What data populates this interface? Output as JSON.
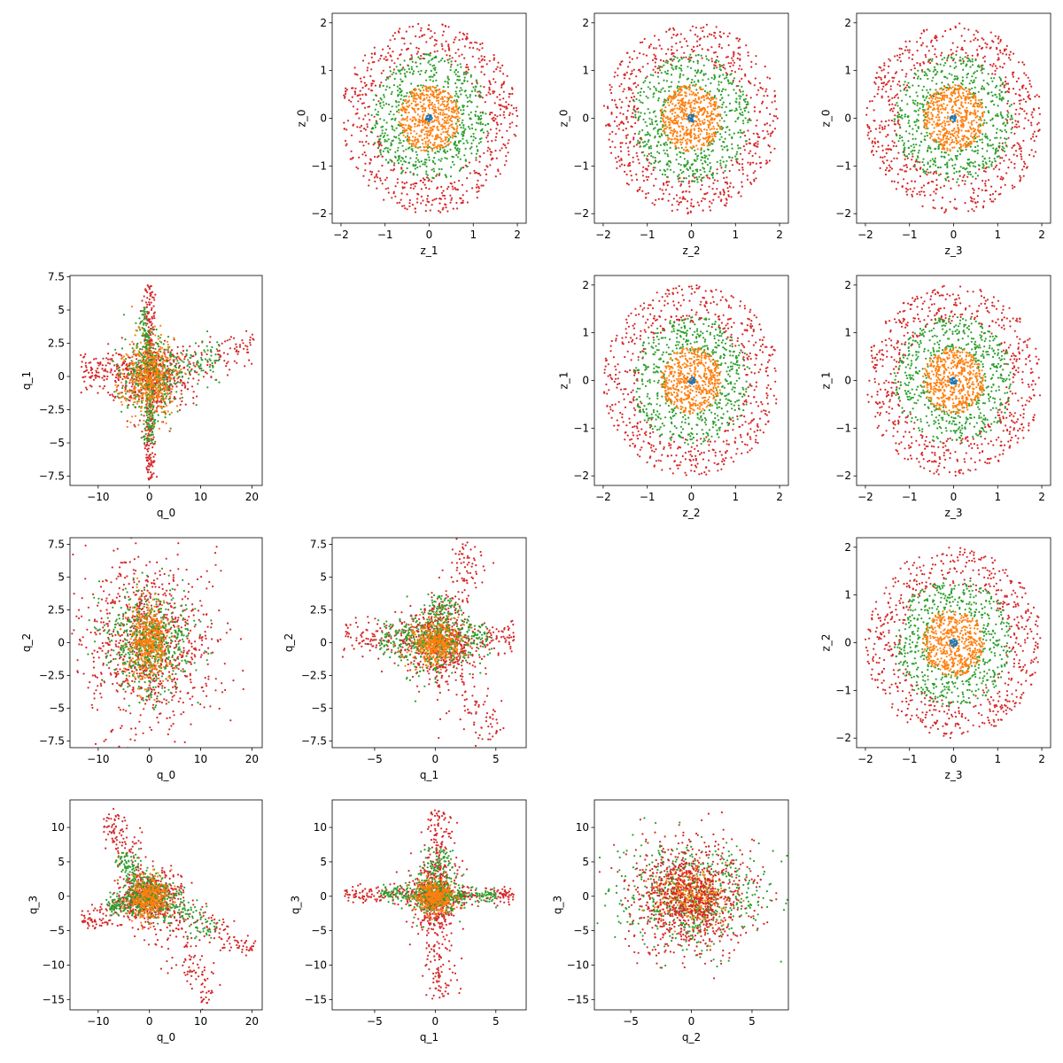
{
  "chart_data": [
    {
      "id": "z0_vs_z1",
      "type": "scatter",
      "xlabel": "z_1",
      "ylabel": "z_0",
      "xlim": [
        -2.2,
        2.2
      ],
      "ylim": [
        -2.2,
        2.2
      ],
      "xticks": [
        -2,
        -1,
        0,
        1,
        2
      ],
      "yticks": [
        -2,
        -1,
        0,
        1,
        2
      ],
      "series": [
        {
          "color": "#d62728",
          "shape": "annulus",
          "inner_radius": 1.2,
          "outer_radius": 2.0,
          "count": 620
        },
        {
          "color": "#2ca02c",
          "shape": "annulus",
          "inner_radius": 0.6,
          "outer_radius": 1.35,
          "count": 560
        },
        {
          "color": "#ff7f0e",
          "shape": "disk",
          "inner_radius": 0.0,
          "outer_radius": 0.7,
          "count": 520
        },
        {
          "color": "#1f77b4",
          "shape": "disk",
          "inner_radius": 0.0,
          "outer_radius": 0.08,
          "count": 25
        }
      ]
    },
    {
      "id": "z0_vs_z2",
      "type": "scatter",
      "xlabel": "z_2",
      "ylabel": "z_0",
      "xlim": [
        -2.2,
        2.2
      ],
      "ylim": [
        -2.2,
        2.2
      ],
      "xticks": [
        -2,
        -1,
        0,
        1,
        2
      ],
      "yticks": [
        -2,
        -1,
        0,
        1,
        2
      ],
      "series": [
        {
          "color": "#d62728",
          "shape": "annulus",
          "inner_radius": 1.2,
          "outer_radius": 2.0,
          "count": 620
        },
        {
          "color": "#2ca02c",
          "shape": "annulus",
          "inner_radius": 0.6,
          "outer_radius": 1.35,
          "count": 560
        },
        {
          "color": "#ff7f0e",
          "shape": "disk",
          "inner_radius": 0.0,
          "outer_radius": 0.7,
          "count": 520
        },
        {
          "color": "#1f77b4",
          "shape": "disk",
          "inner_radius": 0.0,
          "outer_radius": 0.08,
          "count": 25
        }
      ]
    },
    {
      "id": "z0_vs_z3",
      "type": "scatter",
      "xlabel": "z_3",
      "ylabel": "z_0",
      "xlim": [
        -2.2,
        2.2
      ],
      "ylim": [
        -2.2,
        2.2
      ],
      "xticks": [
        -2,
        -1,
        0,
        1,
        2
      ],
      "yticks": [
        -2,
        -1,
        0,
        1,
        2
      ],
      "series": [
        {
          "color": "#d62728",
          "shape": "annulus",
          "inner_radius": 1.2,
          "outer_radius": 2.0,
          "count": 620
        },
        {
          "color": "#2ca02c",
          "shape": "annulus",
          "inner_radius": 0.6,
          "outer_radius": 1.35,
          "count": 560
        },
        {
          "color": "#ff7f0e",
          "shape": "disk",
          "inner_radius": 0.0,
          "outer_radius": 0.7,
          "count": 520
        },
        {
          "color": "#1f77b4",
          "shape": "disk",
          "inner_radius": 0.0,
          "outer_radius": 0.08,
          "count": 25
        }
      ]
    },
    {
      "id": "z1_vs_z2",
      "type": "scatter",
      "xlabel": "z_2",
      "ylabel": "z_1",
      "xlim": [
        -2.2,
        2.2
      ],
      "ylim": [
        -2.2,
        2.2
      ],
      "xticks": [
        -2,
        -1,
        0,
        1,
        2
      ],
      "yticks": [
        -2,
        -1,
        0,
        1,
        2
      ],
      "series": [
        {
          "color": "#d62728",
          "shape": "annulus",
          "inner_radius": 1.2,
          "outer_radius": 2.0,
          "count": 620
        },
        {
          "color": "#2ca02c",
          "shape": "annulus",
          "inner_radius": 0.6,
          "outer_radius": 1.35,
          "count": 560
        },
        {
          "color": "#ff7f0e",
          "shape": "disk",
          "inner_radius": 0.0,
          "outer_radius": 0.7,
          "count": 520
        },
        {
          "color": "#1f77b4",
          "shape": "disk",
          "inner_radius": 0.0,
          "outer_radius": 0.08,
          "count": 25
        }
      ]
    },
    {
      "id": "z1_vs_z3",
      "type": "scatter",
      "xlabel": "z_3",
      "ylabel": "z_1",
      "xlim": [
        -2.2,
        2.2
      ],
      "ylim": [
        -2.2,
        2.2
      ],
      "xticks": [
        -2,
        -1,
        0,
        1,
        2
      ],
      "yticks": [
        -2,
        -1,
        0,
        1,
        2
      ],
      "series": [
        {
          "color": "#d62728",
          "shape": "annulus",
          "inner_radius": 1.2,
          "outer_radius": 2.0,
          "count": 620
        },
        {
          "color": "#2ca02c",
          "shape": "annulus",
          "inner_radius": 0.6,
          "outer_radius": 1.35,
          "count": 560
        },
        {
          "color": "#ff7f0e",
          "shape": "disk",
          "inner_radius": 0.0,
          "outer_radius": 0.7,
          "count": 520
        },
        {
          "color": "#1f77b4",
          "shape": "disk",
          "inner_radius": 0.0,
          "outer_radius": 0.08,
          "count": 25
        }
      ]
    },
    {
      "id": "z2_vs_z3",
      "type": "scatter",
      "xlabel": "z_3",
      "ylabel": "z_2",
      "xlim": [
        -2.2,
        2.2
      ],
      "ylim": [
        -2.2,
        2.2
      ],
      "xticks": [
        -2,
        -1,
        0,
        1,
        2
      ],
      "yticks": [
        -2,
        -1,
        0,
        1,
        2
      ],
      "series": [
        {
          "color": "#d62728",
          "shape": "annulus",
          "inner_radius": 1.2,
          "outer_radius": 2.0,
          "count": 620
        },
        {
          "color": "#2ca02c",
          "shape": "annulus",
          "inner_radius": 0.6,
          "outer_radius": 1.35,
          "count": 560
        },
        {
          "color": "#ff7f0e",
          "shape": "disk",
          "inner_radius": 0.0,
          "outer_radius": 0.7,
          "count": 520
        },
        {
          "color": "#1f77b4",
          "shape": "disk",
          "inner_radius": 0.0,
          "outer_radius": 0.08,
          "count": 25
        }
      ]
    },
    {
      "id": "q1_vs_q0",
      "type": "scatter",
      "xlabel": "q_0",
      "ylabel": "q_1",
      "xlim": [
        -15.5,
        22
      ],
      "ylim": [
        -8.2,
        7.6
      ],
      "xticks": [
        -10,
        0,
        10,
        20
      ],
      "yticks": [
        -7.5,
        -5.0,
        -2.5,
        0.0,
        2.5,
        5.0,
        7.5
      ],
      "series": [
        {
          "color": "#d62728",
          "shape": "arms",
          "core": [
            4.0,
            1.2
          ],
          "arms": [
            [
              -13.5,
              0.5
            ],
            [
              20.5,
              2.4
            ],
            [
              0,
              7.0
            ],
            [
              0,
              -7.8
            ]
          ],
          "count": 900
        },
        {
          "color": "#2ca02c",
          "shape": "arms",
          "core": [
            3.0,
            1.5
          ],
          "arms": [
            [
              14,
              1.5
            ],
            [
              -1.5,
              5
            ],
            [
              0,
              -5
            ]
          ],
          "count": 600
        },
        {
          "color": "#ff7f0e",
          "shape": "blob",
          "core": [
            2.5,
            1.5
          ],
          "count": 450
        }
      ]
    },
    {
      "id": "q2_vs_q0",
      "type": "scatter",
      "xlabel": "q_0",
      "ylabel": "q_2",
      "xlim": [
        -15.5,
        22
      ],
      "ylim": [
        -8.0,
        8.0
      ],
      "xticks": [
        -10,
        0,
        10,
        20
      ],
      "yticks": [
        -7.5,
        -5.0,
        -2.5,
        0.0,
        2.5,
        5.0,
        7.5
      ],
      "series": [
        {
          "color": "#d62728",
          "shape": "blob",
          "core": [
            6.5,
            3.2
          ],
          "count": 900
        },
        {
          "color": "#2ca02c",
          "shape": "blob",
          "core": [
            4.0,
            2.0
          ],
          "count": 600
        },
        {
          "color": "#ff7f0e",
          "shape": "blob",
          "core": [
            2.0,
            1.5
          ],
          "count": 400
        }
      ]
    },
    {
      "id": "q2_vs_q1",
      "type": "scatter",
      "xlabel": "q_1",
      "ylabel": "q_2",
      "xlim": [
        -8.5,
        7.5
      ],
      "ylim": [
        -8.0,
        8.0
      ],
      "xticks": [
        -5,
        0,
        5
      ],
      "yticks": [
        -7.5,
        -5.0,
        -2.5,
        0.0,
        2.5,
        5.0,
        7.5
      ],
      "series": [
        {
          "color": "#d62728",
          "shape": "arms",
          "core": [
            1.5,
            1.5
          ],
          "arms": [
            [
              3.0,
              7.5
            ],
            [
              4.8,
              -7.2
            ],
            [
              -7.5,
              0.5
            ],
            [
              6.5,
              0.3
            ]
          ],
          "count": 900
        },
        {
          "color": "#2ca02c",
          "shape": "arms",
          "core": [
            1.5,
            1.2
          ],
          "arms": [
            [
              4.5,
              1.0
            ],
            [
              -4.5,
              0.5
            ],
            [
              0.8,
              3.5
            ]
          ],
          "count": 600
        },
        {
          "color": "#ff7f0e",
          "shape": "blob",
          "core": [
            1.0,
            0.8
          ],
          "count": 400
        }
      ]
    },
    {
      "id": "q3_vs_q0",
      "type": "scatter",
      "xlabel": "q_0",
      "ylabel": "q_3",
      "xlim": [
        -15.5,
        22
      ],
      "ylim": [
        -16.5,
        14
      ],
      "xticks": [
        -10,
        0,
        10,
        20
      ],
      "yticks": [
        -15,
        -10,
        -5,
        0,
        5,
        10
      ],
      "series": [
        {
          "color": "#d62728",
          "shape": "arms",
          "core": [
            3.0,
            2.0
          ],
          "arms": [
            [
              -8,
              12
            ],
            [
              12,
              -15
            ],
            [
              -13,
              -4
            ],
            [
              20,
              -8
            ]
          ],
          "count": 900
        },
        {
          "color": "#2ca02c",
          "shape": "arms",
          "core": [
            3.0,
            1.5
          ],
          "arms": [
            [
              -6,
              6
            ],
            [
              13,
              -5
            ],
            [
              -8,
              -2
            ]
          ],
          "count": 600
        },
        {
          "color": "#ff7f0e",
          "shape": "blob",
          "core": [
            2.0,
            1.5
          ],
          "count": 350
        }
      ]
    },
    {
      "id": "q3_vs_q1",
      "type": "scatter",
      "xlabel": "q_1",
      "ylabel": "q_3",
      "xlim": [
        -8.5,
        7.5
      ],
      "ylim": [
        -16.5,
        14
      ],
      "xticks": [
        -5,
        0,
        5
      ],
      "yticks": [
        -15,
        -10,
        -5,
        0,
        5,
        10
      ],
      "series": [
        {
          "color": "#d62728",
          "shape": "arms",
          "core": [
            1.0,
            2.5
          ],
          "arms": [
            [
              0.5,
              12.5
            ],
            [
              0.5,
              -15
            ],
            [
              -7.5,
              0.3
            ],
            [
              6.5,
              0.3
            ]
          ],
          "count": 900
        },
        {
          "color": "#2ca02c",
          "shape": "arms",
          "core": [
            1.0,
            1.5
          ],
          "arms": [
            [
              5.0,
              0.2
            ],
            [
              -4.5,
              0.5
            ],
            [
              0.5,
              7.0
            ]
          ],
          "count": 600
        },
        {
          "color": "#ff7f0e",
          "shape": "blob",
          "core": [
            0.8,
            1.2
          ],
          "count": 350
        }
      ]
    },
    {
      "id": "q3_vs_q2",
      "type": "scatter",
      "xlabel": "q_2",
      "ylabel": "q_3",
      "xlim": [
        -8.0,
        8.0
      ],
      "ylim": [
        -16.5,
        14
      ],
      "xticks": [
        -5,
        0,
        5
      ],
      "yticks": [
        -15,
        -10,
        -5,
        0,
        5,
        10
      ],
      "series": [
        {
          "color": "#2ca02c",
          "shape": "blob",
          "core": [
            3.0,
            3.5
          ],
          "count": 600
        },
        {
          "color": "#ff7f0e",
          "shape": "blob",
          "core": [
            1.5,
            2.0
          ],
          "count": 350
        },
        {
          "color": "#d62728",
          "shape": "blob",
          "core": [
            2.5,
            4.0
          ],
          "count": 900
        }
      ]
    }
  ]
}
